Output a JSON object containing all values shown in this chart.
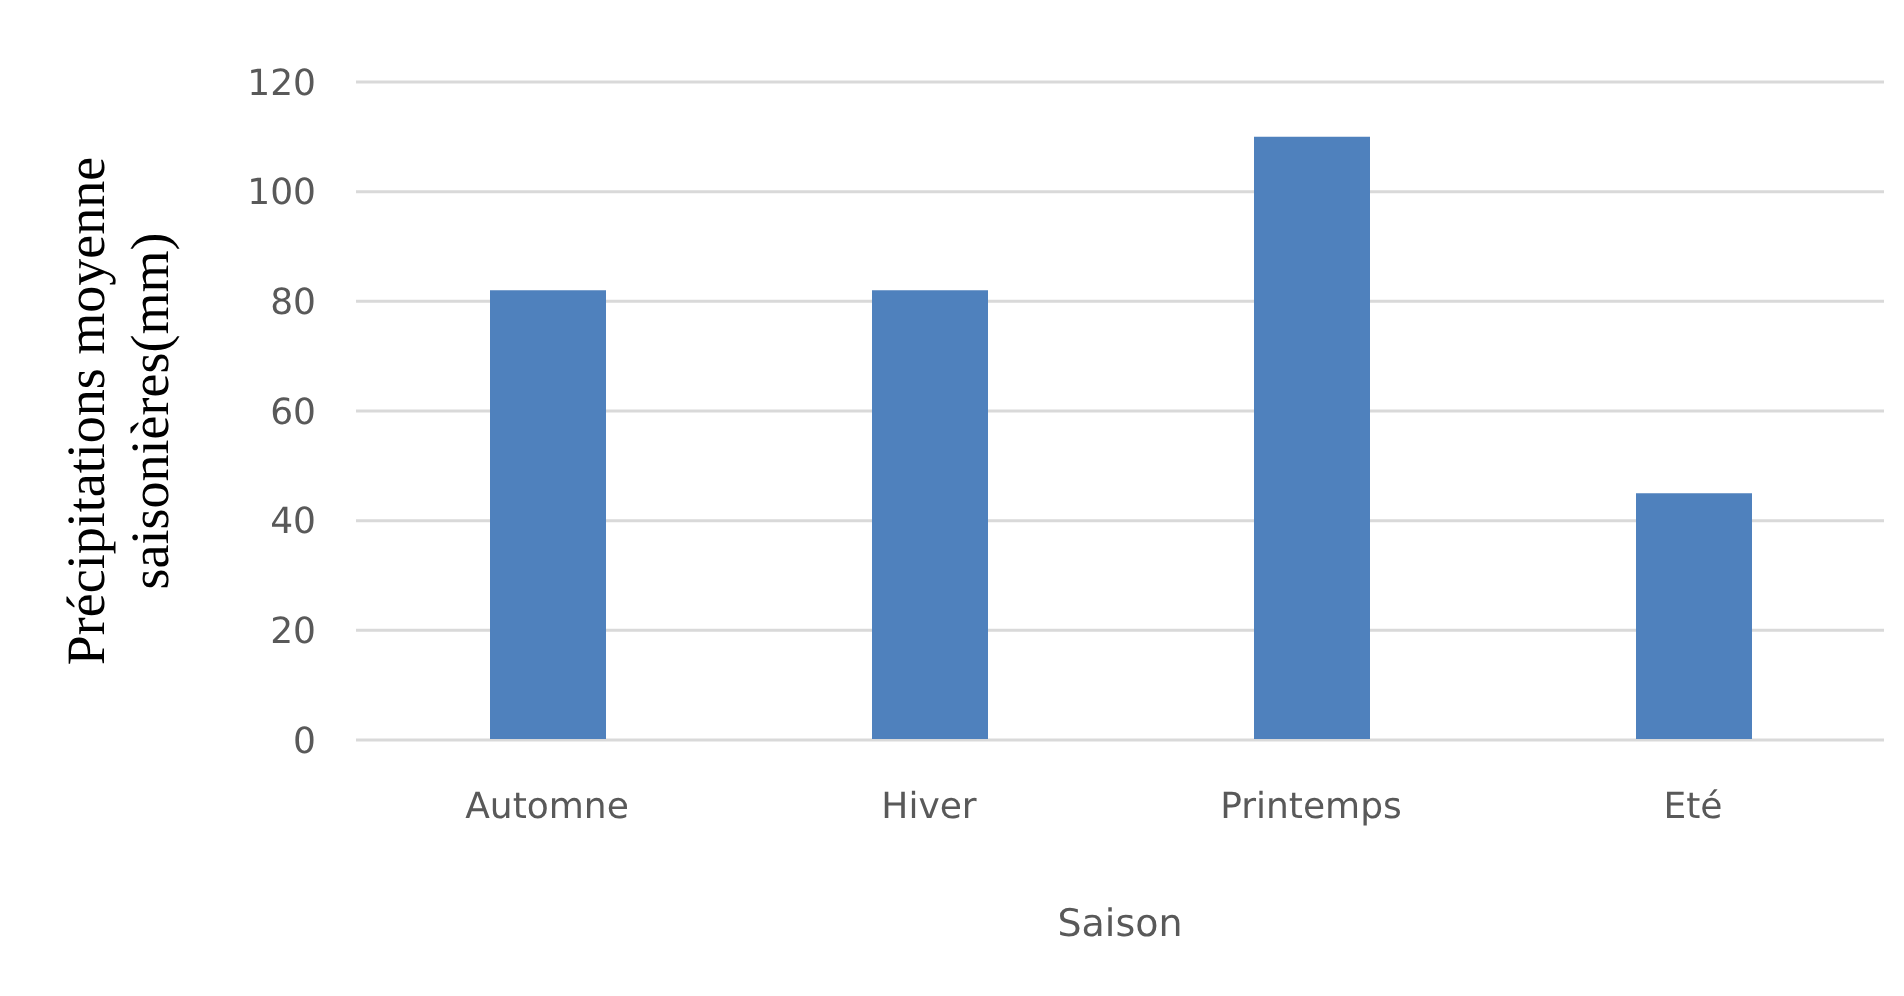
{
  "chart_data": {
    "type": "bar",
    "xlabel": "Saison",
    "ylabel": "Précipitations moyenne saisonières(mm)",
    "categories": [
      "Automne",
      "Hiver",
      "Printemps",
      "Eté"
    ],
    "values": [
      82,
      82,
      110,
      45
    ],
    "color": "#4f81bd",
    "ylim": [
      0,
      120
    ],
    "yticks": [
      0,
      20,
      40,
      60,
      80,
      100,
      120
    ],
    "grid": "y"
  }
}
